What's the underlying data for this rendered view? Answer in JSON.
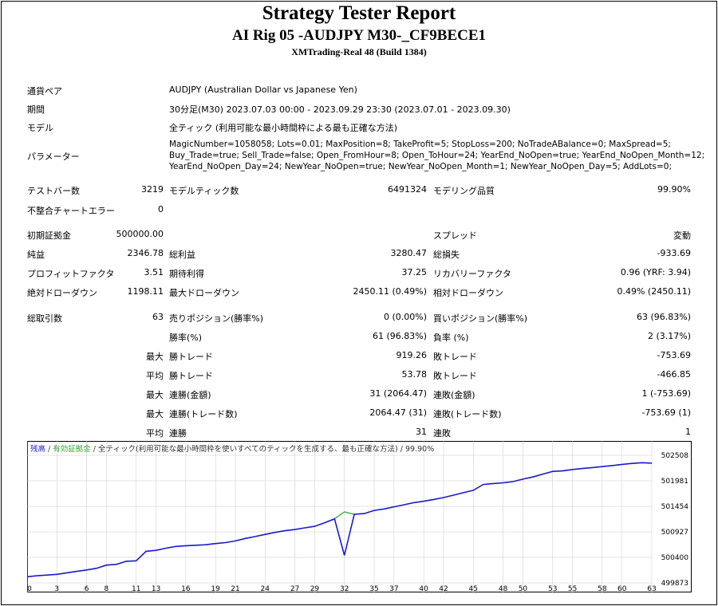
{
  "header": {
    "title": "Strategy Tester Report",
    "subtitle": "AI Rig 05 -AUDJPY M30-_CF9BECE1",
    "server": "XMTrading-Real 48 (Build 1384)"
  },
  "settings": {
    "symbol_label": "通貨ペア",
    "symbol_value": "AUDJPY (Australian Dollar vs Japanese Yen)",
    "period_label": "期間",
    "period_value": "30分足(M30) 2023.07.03 00:00 - 2023.09.29 23:30 (2023.07.01 - 2023.09.30)",
    "model_label": "モデル",
    "model_value": "全ティック (利用可能な最小時間枠による最も正確な方法)",
    "params_label": "パラメーター",
    "params_line1": "MagicNumber=1058058; Lots=0.01; MaxPosition=8; TakeProfit=5; StopLoss=200; NoTradeABalance=0; MaxSpread=5;",
    "params_line2": "Buy_Trade=true; Sell_Trade=false; Open_FromHour=8; Open_ToHour=24; YearEnd_NoOpen=true; YearEnd_NoOpen_Month=12;",
    "params_line3": "YearEnd_NoOpen_Day=24; NewYear_NoOpen=true; NewYear_NoOpen_Month=1; NewYear_NoOpen_Day=5; AddLots=0;"
  },
  "stats": {
    "bars_label": "テストバー数",
    "bars_value": "3219",
    "ticks_label": "モデルティック数",
    "ticks_value": "6491324",
    "quality_label": "モデリング品質",
    "quality_value": "99.90%",
    "mismatch_label": "不整合チャートエラー",
    "mismatch_value": "0",
    "deposit_label": "初期証拠金",
    "deposit_value": "500000.00",
    "spread_label": "スプレッド",
    "spread_value": "変動",
    "net_label": "純益",
    "net_value": "2346.78",
    "gross_profit_label": "総利益",
    "gross_profit_value": "3280.47",
    "gross_loss_label": "総損失",
    "gross_loss_value": "-933.69",
    "pf_label": "プロフィットファクタ",
    "pf_value": "3.51",
    "expected_label": "期待利得",
    "expected_value": "37.25",
    "recovery_label": "リカバリーファクタ",
    "recovery_value": "0.96 (YRF: 3.94)",
    "abs_dd_label": "絶対ドローダウン",
    "abs_dd_value": "1198.11",
    "max_dd_label": "最大ドローダウン",
    "max_dd_value": "2450.11 (0.49%)",
    "rel_dd_label": "相対ドローダウン",
    "rel_dd_value": "0.49% (2450.11)",
    "trades_label": "総取引数",
    "trades_value": "63",
    "short_label": "売りポジション(勝率%)",
    "short_value": "0 (0.00%)",
    "long_label": "買いポジション(勝率%)",
    "long_value": "63 (96.83%)",
    "winrate_label": "勝率(%)",
    "winrate_value": "61 (96.83%)",
    "lossrate_label": "負率 (%)",
    "lossrate_value": "2 (3.17%)",
    "largest_prefix": "最大",
    "largest_win_label": "勝トレード",
    "largest_win_value": "919.26",
    "largest_loss_label": "敗トレード",
    "largest_loss_value": "-753.69",
    "average_prefix": "平均",
    "avg_win_label": "勝トレード",
    "avg_win_value": "53.78",
    "avg_loss_label": "敗トレード",
    "avg_loss_value": "-466.85",
    "max_prefix1": "最大",
    "consec_wins_money_label": "連勝(金額)",
    "consec_wins_money_value": "31 (2064.47)",
    "consec_losses_money_label": "連敗(金額)",
    "consec_losses_money_value": "1 (-753.69)",
    "max_prefix2": "最大",
    "consec_wins_count_label": "連勝(トレード数)",
    "consec_wins_count_value": "2064.47 (31)",
    "consec_losses_count_label": "連敗(トレード数)",
    "consec_losses_count_value": "-753.69 (1)",
    "avg_prefix2": "平均",
    "avg_consec_wins_label": "連勝",
    "avg_consec_wins_value": "31",
    "avg_consec_losses_label": "連敗",
    "avg_consec_losses_value": "1"
  },
  "chart_data": {
    "type": "line",
    "legend_balance": "残高",
    "legend_sep1": " / ",
    "legend_equity": "有効証拠金",
    "legend_sep2": " / ",
    "legend_rest": "全ティック(利用可能な最小時間枠を使いすべてのティックを生成する、最も正確な方法) / 99.90%",
    "colors": {
      "balance": "#1a1acd",
      "equity": "#2fa82f",
      "grid": "#c8c8c8"
    },
    "x_ticks": [
      0,
      3,
      6,
      8,
      11,
      13,
      16,
      19,
      21,
      24,
      27,
      29,
      32,
      35,
      37,
      40,
      42,
      45,
      48,
      50,
      53,
      55,
      58,
      60,
      63
    ],
    "y_ticks": [
      499873,
      500400,
      500927,
      501454,
      501981,
      502508
    ],
    "ylim": [
      499873,
      502640
    ],
    "xlim": [
      0,
      63
    ],
    "balance": [
      [
        0,
        500000
      ],
      [
        1,
        500020
      ],
      [
        2,
        500035
      ],
      [
        3,
        500050
      ],
      [
        4,
        500080
      ],
      [
        5,
        500110
      ],
      [
        6,
        500140
      ],
      [
        7,
        500175
      ],
      [
        8,
        500240
      ],
      [
        9,
        500255
      ],
      [
        10,
        500320
      ],
      [
        11,
        500330
      ],
      [
        12,
        500525
      ],
      [
        13,
        500545
      ],
      [
        14,
        500590
      ],
      [
        15,
        500625
      ],
      [
        16,
        500640
      ],
      [
        17,
        500650
      ],
      [
        18,
        500660
      ],
      [
        19,
        500685
      ],
      [
        20,
        500705
      ],
      [
        21,
        500740
      ],
      [
        22,
        500790
      ],
      [
        23,
        500830
      ],
      [
        24,
        500875
      ],
      [
        25,
        500915
      ],
      [
        26,
        500950
      ],
      [
        27,
        500975
      ],
      [
        28,
        501010
      ],
      [
        29,
        501040
      ],
      [
        30,
        501115
      ],
      [
        31,
        501195
      ],
      [
        32,
        500441
      ],
      [
        33,
        501290
      ],
      [
        34,
        501305
      ],
      [
        35,
        501370
      ],
      [
        36,
        501400
      ],
      [
        37,
        501445
      ],
      [
        38,
        501485
      ],
      [
        39,
        501530
      ],
      [
        40,
        501560
      ],
      [
        41,
        501595
      ],
      [
        42,
        501635
      ],
      [
        43,
        501685
      ],
      [
        44,
        501735
      ],
      [
        45,
        501785
      ],
      [
        46,
        501905
      ],
      [
        47,
        501925
      ],
      [
        48,
        501940
      ],
      [
        49,
        501965
      ],
      [
        50,
        502015
      ],
      [
        51,
        502060
      ],
      [
        52,
        502120
      ],
      [
        53,
        502175
      ],
      [
        54,
        502185
      ],
      [
        55,
        502215
      ],
      [
        56,
        502235
      ],
      [
        57,
        502255
      ],
      [
        58,
        502275
      ],
      [
        59,
        502295
      ],
      [
        60,
        502320
      ],
      [
        61,
        502340
      ],
      [
        62,
        502355
      ],
      [
        63,
        502346.78
      ]
    ],
    "equity": [
      [
        30,
        501115
      ],
      [
        31,
        501195
      ],
      [
        32,
        501340
      ],
      [
        33,
        501290
      ]
    ]
  }
}
